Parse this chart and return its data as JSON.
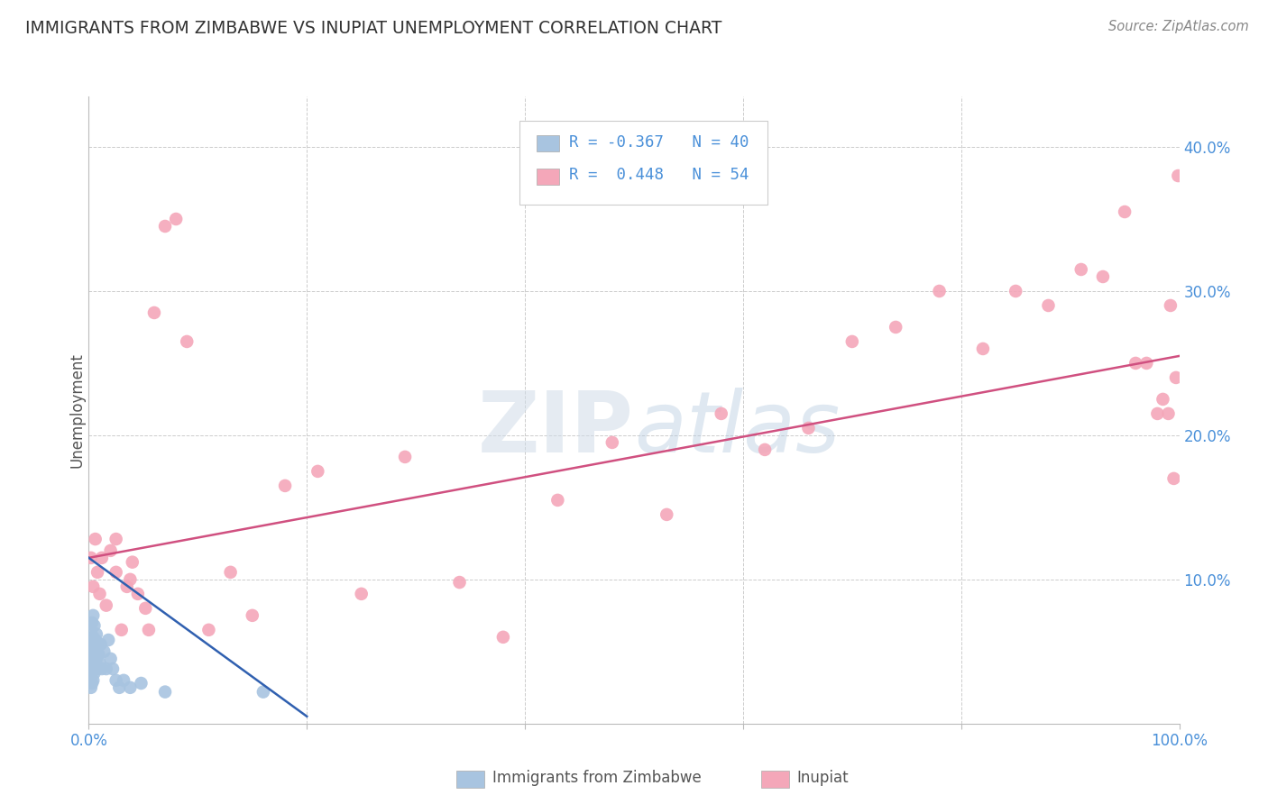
{
  "title": "IMMIGRANTS FROM ZIMBABWE VS INUPIAT UNEMPLOYMENT CORRELATION CHART",
  "source": "Source: ZipAtlas.com",
  "ylabel": "Unemployment",
  "watermark": "ZIPatlas",
  "legend_label1": "Immigrants from Zimbabwe",
  "legend_label2": "Inupiat",
  "xlim": [
    0.0,
    1.0
  ],
  "ylim": [
    0.0,
    0.435
  ],
  "blue_color": "#a8c4e0",
  "pink_color": "#f4a7b9",
  "blue_line_color": "#3060b0",
  "pink_line_color": "#d05080",
  "tick_color": "#4a90d9",
  "axis_label_color": "#555555",
  "grid_color": "#cccccc",
  "background_color": "#ffffff",
  "blue_dots_x": [
    0.001,
    0.001,
    0.001,
    0.002,
    0.002,
    0.002,
    0.002,
    0.003,
    0.003,
    0.003,
    0.003,
    0.004,
    0.004,
    0.004,
    0.004,
    0.005,
    0.005,
    0.005,
    0.006,
    0.006,
    0.007,
    0.007,
    0.008,
    0.008,
    0.009,
    0.01,
    0.011,
    0.012,
    0.014,
    0.016,
    0.018,
    0.02,
    0.022,
    0.025,
    0.028,
    0.032,
    0.038,
    0.048,
    0.07,
    0.16
  ],
  "blue_dots_y": [
    0.03,
    0.04,
    0.055,
    0.025,
    0.035,
    0.05,
    0.065,
    0.028,
    0.042,
    0.055,
    0.07,
    0.03,
    0.045,
    0.06,
    0.075,
    0.035,
    0.05,
    0.068,
    0.04,
    0.058,
    0.045,
    0.062,
    0.038,
    0.055,
    0.048,
    0.042,
    0.055,
    0.038,
    0.05,
    0.038,
    0.058,
    0.045,
    0.038,
    0.03,
    0.025,
    0.03,
    0.025,
    0.028,
    0.022,
    0.022
  ],
  "pink_dots_x": [
    0.002,
    0.004,
    0.006,
    0.008,
    0.01,
    0.012,
    0.016,
    0.02,
    0.025,
    0.03,
    0.038,
    0.045,
    0.052,
    0.06,
    0.07,
    0.08,
    0.09,
    0.11,
    0.13,
    0.15,
    0.18,
    0.21,
    0.25,
    0.29,
    0.34,
    0.38,
    0.43,
    0.48,
    0.53,
    0.58,
    0.62,
    0.66,
    0.7,
    0.74,
    0.78,
    0.82,
    0.85,
    0.88,
    0.91,
    0.93,
    0.95,
    0.96,
    0.97,
    0.98,
    0.985,
    0.99,
    0.992,
    0.995,
    0.997,
    0.999,
    0.025,
    0.035,
    0.04,
    0.055
  ],
  "pink_dots_y": [
    0.115,
    0.095,
    0.128,
    0.105,
    0.09,
    0.115,
    0.082,
    0.12,
    0.105,
    0.065,
    0.1,
    0.09,
    0.08,
    0.285,
    0.345,
    0.35,
    0.265,
    0.065,
    0.105,
    0.075,
    0.165,
    0.175,
    0.09,
    0.185,
    0.098,
    0.06,
    0.155,
    0.195,
    0.145,
    0.215,
    0.19,
    0.205,
    0.265,
    0.275,
    0.3,
    0.26,
    0.3,
    0.29,
    0.315,
    0.31,
    0.355,
    0.25,
    0.25,
    0.215,
    0.225,
    0.215,
    0.29,
    0.17,
    0.24,
    0.38,
    0.128,
    0.095,
    0.112,
    0.065
  ],
  "blue_trend_x": [
    0.0,
    0.2
  ],
  "blue_trend_y": [
    0.115,
    0.005
  ],
  "pink_trend_x": [
    0.0,
    1.0
  ],
  "pink_trend_y": [
    0.115,
    0.255
  ]
}
